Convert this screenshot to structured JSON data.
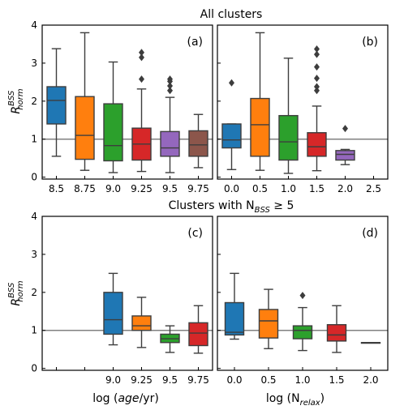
{
  "titles": {
    "top": "All clusters",
    "bottom_prefix": "Clusters with N",
    "bottom_sub": "BSS",
    "bottom_suffix": " ≥ 5"
  },
  "ylabel": {
    "main": "R",
    "sup": "BSS",
    "sub": "norm"
  },
  "chart_data": [
    {
      "id": "a",
      "panel_label": "(a)",
      "type": "box",
      "row": 0,
      "col": 0,
      "categories": [
        "8.5",
        "8.75",
        "9.0",
        "9.25",
        "9.5",
        "9.75"
      ],
      "xlabel": "",
      "ylim": [
        -0.05,
        4
      ],
      "yticks": [
        "0",
        "1",
        "2",
        "3",
        "4"
      ],
      "ref_line": 1,
      "boxes": [
        {
          "x": "8.5",
          "color": "#1f77b4",
          "q1": 1.4,
          "median": 2.02,
          "q3": 2.38,
          "whislo": 0.55,
          "whishi": 3.38,
          "fliers": []
        },
        {
          "x": "8.75",
          "color": "#ff7f0e",
          "q1": 0.47,
          "median": 1.1,
          "q3": 2.12,
          "whislo": 0.18,
          "whishi": 3.8,
          "fliers": []
        },
        {
          "x": "9.0",
          "color": "#2ca02c",
          "q1": 0.43,
          "median": 0.83,
          "q3": 1.93,
          "whislo": 0.12,
          "whishi": 3.03,
          "fliers": []
        },
        {
          "x": "9.25",
          "color": "#d62728",
          "q1": 0.45,
          "median": 0.87,
          "q3": 1.29,
          "whislo": 0.15,
          "whishi": 2.32,
          "fliers": [
            2.58,
            3.15,
            3.28
          ]
        },
        {
          "x": "9.5",
          "color": "#9467bd",
          "q1": 0.55,
          "median": 0.77,
          "q3": 1.2,
          "whislo": 0.12,
          "whishi": 2.1,
          "fliers": [
            2.28,
            2.4,
            2.52,
            2.58
          ]
        },
        {
          "x": "9.75",
          "color": "#8c564b",
          "q1": 0.55,
          "median": 0.85,
          "q3": 1.22,
          "whislo": 0.25,
          "whishi": 1.65,
          "fliers": []
        }
      ]
    },
    {
      "id": "b",
      "panel_label": "(b)",
      "type": "box",
      "row": 0,
      "col": 1,
      "categories": [
        "0.0",
        "0.5",
        "1.0",
        "1.5",
        "2.0",
        "2.5"
      ],
      "xlabel": "",
      "ylim": [
        -0.05,
        4
      ],
      "yticks": [
        "0",
        "1",
        "2",
        "3",
        "4"
      ],
      "ref_line": 1,
      "boxes": [
        {
          "x": "0.0",
          "color": "#1f77b4",
          "q1": 0.77,
          "median": 0.98,
          "q3": 1.4,
          "whislo": 0.2,
          "whishi": 1.4,
          "fliers": [
            2.48
          ]
        },
        {
          "x": "0.5",
          "color": "#ff7f0e",
          "q1": 0.55,
          "median": 1.38,
          "q3": 2.07,
          "whislo": 0.18,
          "whishi": 3.8,
          "fliers": []
        },
        {
          "x": "1.0",
          "color": "#2ca02c",
          "q1": 0.45,
          "median": 0.93,
          "q3": 1.62,
          "whislo": 0.1,
          "whishi": 3.13,
          "fliers": []
        },
        {
          "x": "1.5",
          "color": "#d62728",
          "q1": 0.55,
          "median": 0.8,
          "q3": 1.17,
          "whislo": 0.17,
          "whishi": 1.87,
          "fliers": [
            2.28,
            2.38,
            2.6,
            2.9,
            3.23,
            3.37
          ]
        },
        {
          "x": "2.0",
          "color": "#9467bd",
          "q1": 0.45,
          "median": 0.6,
          "q3": 0.7,
          "whislo": 0.33,
          "whishi": 0.73,
          "fliers": [
            1.28
          ]
        }
      ]
    },
    {
      "id": "c",
      "panel_label": "(c)",
      "type": "box",
      "row": 1,
      "col": 0,
      "categories": [
        "",
        "",
        "9.0",
        "9.25",
        "9.5",
        "9.75"
      ],
      "xlabel": "log (age/yr)",
      "ylim": [
        -0.05,
        4
      ],
      "yticks": [
        "0",
        "1",
        "2",
        "3",
        "4"
      ],
      "ref_line": 1,
      "boxes": [
        {
          "x": "9.0",
          "color": "#1f77b4",
          "q1": 0.9,
          "median": 1.28,
          "q3": 2.0,
          "whislo": 0.62,
          "whishi": 2.5,
          "fliers": []
        },
        {
          "x": "9.25",
          "color": "#ff7f0e",
          "q1": 1.0,
          "median": 1.12,
          "q3": 1.38,
          "whislo": 0.55,
          "whishi": 1.87,
          "fliers": []
        },
        {
          "x": "9.5",
          "color": "#2ca02c",
          "q1": 0.68,
          "median": 0.78,
          "q3": 0.9,
          "whislo": 0.42,
          "whishi": 1.12,
          "fliers": []
        },
        {
          "x": "9.75",
          "color": "#d62728",
          "q1": 0.6,
          "median": 0.93,
          "q3": 1.2,
          "whislo": 0.4,
          "whishi": 1.65,
          "fliers": []
        }
      ]
    },
    {
      "id": "d",
      "panel_label": "(d)",
      "type": "box",
      "row": 1,
      "col": 1,
      "categories": [
        "0.0",
        "0.5",
        "1.0",
        "1.5",
        "2.0"
      ],
      "xlabel": "log (N_relax)",
      "ylim": [
        -0.05,
        4
      ],
      "yticks": [
        "0",
        "1",
        "2",
        "3",
        "4"
      ],
      "ref_line": 1,
      "boxes": [
        {
          "x": "0.0",
          "color": "#1f77b4",
          "q1": 0.88,
          "median": 0.95,
          "q3": 1.73,
          "whislo": 0.77,
          "whishi": 2.5,
          "fliers": []
        },
        {
          "x": "0.5",
          "color": "#ff7f0e",
          "q1": 0.8,
          "median": 1.25,
          "q3": 1.55,
          "whislo": 0.52,
          "whishi": 2.08,
          "fliers": []
        },
        {
          "x": "1.0",
          "color": "#2ca02c",
          "q1": 0.78,
          "median": 1.0,
          "q3": 1.12,
          "whislo": 0.47,
          "whishi": 1.6,
          "fliers": [
            1.92
          ]
        },
        {
          "x": "1.5",
          "color": "#d62728",
          "q1": 0.72,
          "median": 0.88,
          "q3": 1.15,
          "whislo": 0.42,
          "whishi": 1.65,
          "fliers": []
        },
        {
          "x": "2.0",
          "color": "#9467bd",
          "q1": 0.68,
          "median": 0.68,
          "q3": 0.68,
          "whislo": 0.68,
          "whishi": 0.68,
          "fliers": []
        }
      ]
    }
  ]
}
